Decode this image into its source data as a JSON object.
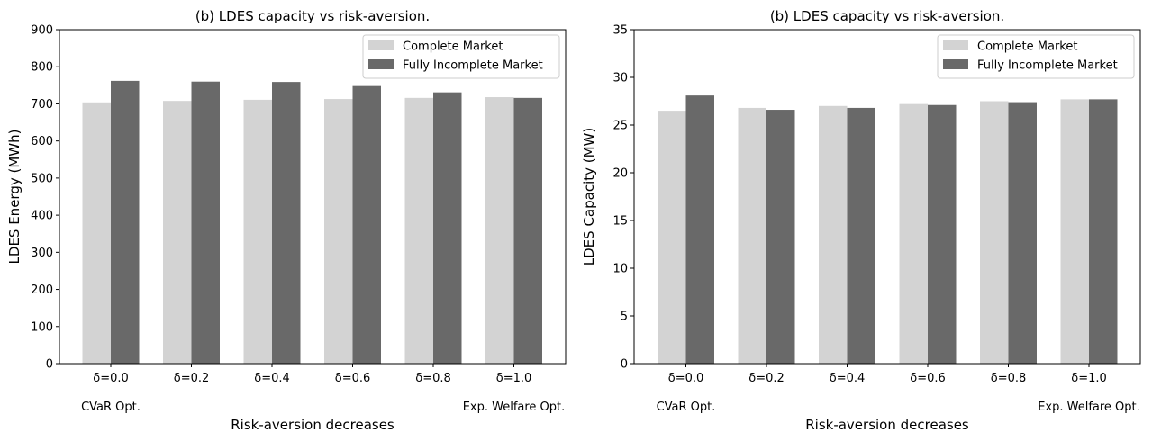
{
  "chart_data": [
    {
      "type": "bar",
      "title": "(b) LDES capacity vs risk-aversion.",
      "xlabel": "Risk-aversion decreases",
      "ylabel": "LDES Energy (MWh)",
      "ylim": [
        0,
        900
      ],
      "yticks": [
        0,
        100,
        200,
        300,
        400,
        500,
        600,
        700,
        800,
        900
      ],
      "categories": [
        "δ=0.0",
        "δ=0.2",
        "δ=0.4",
        "δ=0.6",
        "δ=0.8",
        "δ=1.0"
      ],
      "annotations": {
        "left": "CVaR Opt.",
        "right": "Exp. Welfare Opt."
      },
      "legend_position": "top-right",
      "grid": false,
      "series": [
        {
          "name": "Complete Market",
          "color": "#d3d3d3",
          "values": [
            704,
            708,
            711,
            713,
            716,
            718
          ]
        },
        {
          "name": "Fully Incomplete Market",
          "color": "#696969",
          "values": [
            762,
            760,
            759,
            748,
            731,
            716
          ]
        }
      ]
    },
    {
      "type": "bar",
      "title": "(b) LDES capacity vs risk-aversion.",
      "xlabel": "Risk-aversion decreases",
      "ylabel": "LDES Capacity (MW)",
      "ylim": [
        0,
        35
      ],
      "yticks": [
        0,
        5,
        10,
        15,
        20,
        25,
        30,
        35
      ],
      "categories": [
        "δ=0.0",
        "δ=0.2",
        "δ=0.4",
        "δ=0.6",
        "δ=0.8",
        "δ=1.0"
      ],
      "annotations": {
        "left": "CVaR Opt.",
        "right": "Exp. Welfare Opt."
      },
      "legend_position": "top-right",
      "grid": false,
      "series": [
        {
          "name": "Complete Market",
          "color": "#d3d3d3",
          "values": [
            26.5,
            26.8,
            27.0,
            27.2,
            27.5,
            27.7
          ]
        },
        {
          "name": "Fully Incomplete Market",
          "color": "#696969",
          "values": [
            28.1,
            26.6,
            26.8,
            27.1,
            27.4,
            27.7
          ]
        }
      ]
    }
  ]
}
